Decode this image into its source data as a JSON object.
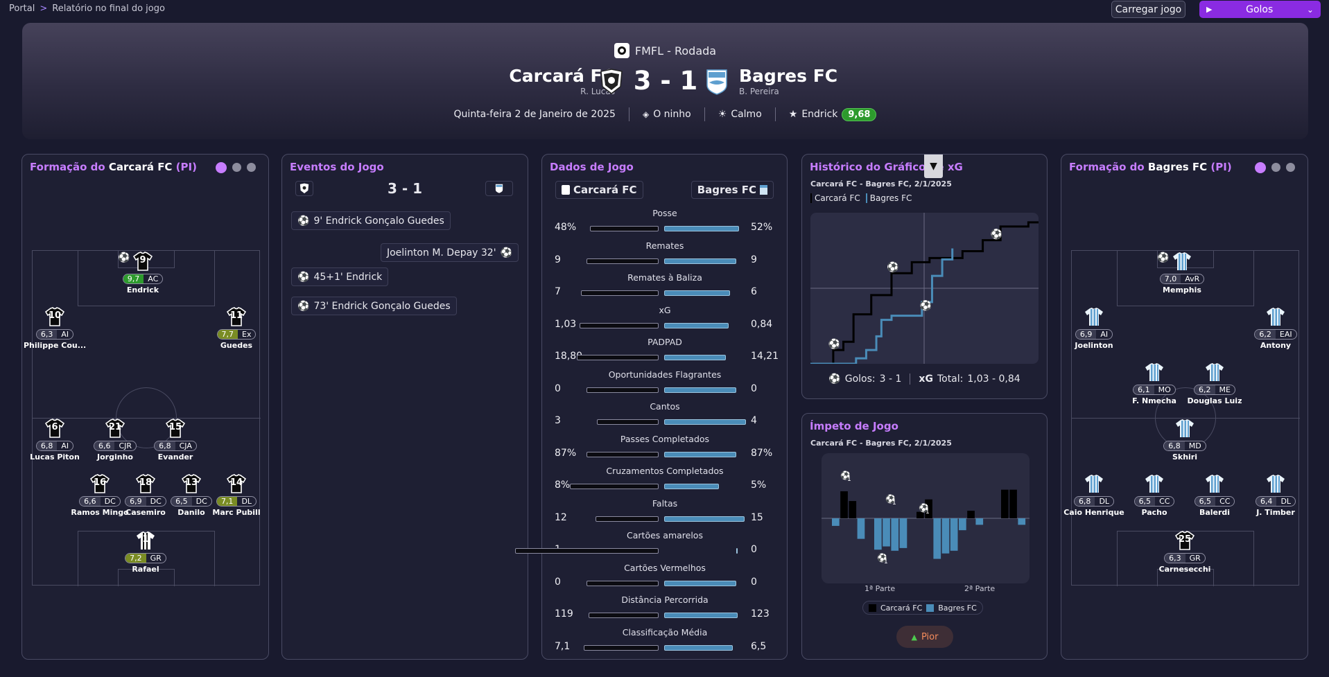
{
  "breadcrumb": {
    "root": "Portal",
    "current": "Relatório no final do jogo"
  },
  "toolbar": {
    "load": "Carregar jogo",
    "goals": "Golos"
  },
  "header": {
    "competition": "FMFL - Rodada",
    "home": "Carcará FC",
    "home_coach": "R. Lucas",
    "away": "Bagres FC",
    "away_coach": "B. Pereira",
    "score": "3 - 1",
    "date": "Quinta-feira 2 de Janeiro de 2025",
    "stadium": "O ninho",
    "weather": "Calmo",
    "motm": "Endrick",
    "motm_rating": "9,68"
  },
  "home_formation": {
    "prefix": "Formação do ",
    "team": "Carcará FC",
    "suffix": " (PI)",
    "players": [
      {
        "num": "9",
        "rating": "9,7",
        "pos": "AC",
        "name": "Endrick",
        "rc": "g",
        "goal": true
      },
      {
        "num": "10",
        "rating": "6,3",
        "pos": "AI",
        "name": "Philippe Cou...",
        "rc": ""
      },
      {
        "num": "11",
        "rating": "7,7",
        "pos": "Ex",
        "name": "Guedes",
        "rc": "y"
      },
      {
        "num": "6",
        "rating": "6,8",
        "pos": "AI",
        "name": "Lucas Piton",
        "rc": ""
      },
      {
        "num": "21",
        "rating": "6,6",
        "pos": "CJR",
        "name": "Jorginho",
        "rc": ""
      },
      {
        "num": "15",
        "rating": "6,8",
        "pos": "CJA",
        "name": "Evander",
        "rc": ""
      },
      {
        "num": "16",
        "rating": "6,6",
        "pos": "DC",
        "name": "Ramos Mingo",
        "rc": ""
      },
      {
        "num": "18",
        "rating": "6,9",
        "pos": "DC",
        "name": "Casemiro",
        "rc": ""
      },
      {
        "num": "13",
        "rating": "6,5",
        "pos": "DC",
        "name": "Danilo",
        "rc": ""
      },
      {
        "num": "14",
        "rating": "7,1",
        "pos": "DL",
        "name": "Marc Pubill",
        "rc": "y"
      },
      {
        "num": "1",
        "rating": "7,2",
        "pos": "GR",
        "name": "Rafael",
        "rc": "y"
      }
    ]
  },
  "events": {
    "title": "Eventos do Jogo",
    "score": "3 - 1",
    "items": [
      {
        "text": "9'  Endrick  Gonçalo Guedes",
        "side": "home"
      },
      {
        "text": "Joelinton  M. Depay  32'",
        "side": "away"
      },
      {
        "text": "45+1'  Endrick",
        "side": "home"
      },
      {
        "text": "73'  Endrick  Gonçalo Guedes",
        "side": "home"
      }
    ]
  },
  "stats": {
    "title": "Dados de Jogo",
    "home": "Carcará FC",
    "away": "Bagres FC",
    "rows": [
      {
        "label": "Posse",
        "l": "48%",
        "r": "52%",
        "lv": 48,
        "rv": 52
      },
      {
        "label": "Remates",
        "l": "9",
        "r": "9",
        "lv": 50,
        "rv": 50
      },
      {
        "label": "Remates à Baliza",
        "l": "7",
        "r": "6",
        "lv": 54,
        "rv": 46
      },
      {
        "label": "xG",
        "l": "1,03",
        "r": "0,84",
        "lv": 55,
        "rv": 45
      },
      {
        "label": "PADPAD",
        "l": "18,80",
        "r": "14,21",
        "lv": 57,
        "rv": 43
      },
      {
        "label": "Oportunidades Flagrantes",
        "l": "0",
        "r": "0",
        "lv": 50,
        "rv": 50
      },
      {
        "label": "Cantos",
        "l": "3",
        "r": "4",
        "lv": 43,
        "rv": 57
      },
      {
        "label": "Passes Completados",
        "l": "87%",
        "r": "87%",
        "lv": 50,
        "rv": 50
      },
      {
        "label": "Cruzamentos Completados",
        "l": "8%",
        "r": "5%",
        "lv": 62,
        "rv": 38
      },
      {
        "label": "Faltas",
        "l": "12",
        "r": "15",
        "lv": 44,
        "rv": 56
      },
      {
        "label": "Cartões amarelos",
        "l": "1",
        "r": "0",
        "lv": 100,
        "rv": 0
      },
      {
        "label": "Cartões Vermelhos",
        "l": "0",
        "r": "0",
        "lv": 50,
        "rv": 50
      },
      {
        "label": "Distância Percorrida",
        "l": "119",
        "r": "123",
        "lv": 49,
        "rv": 51
      },
      {
        "label": "Classificação Média",
        "l": "7,1",
        "r": "6,5",
        "lv": 52,
        "rv": 48
      }
    ]
  },
  "xg": {
    "title": "Histórico do Gráfico de xG",
    "subtitle": "Carcará FC - Bagres FC, 2/1/2025",
    "legend_home": "Carcará FC",
    "legend_away": "Bagres FC",
    "goals_label": "Golos:",
    "goals": "3 - 1",
    "xg_label": "xG",
    "total_label": "Total:",
    "total": "1,03  -  0,84"
  },
  "momentum": {
    "title": "Ímpeto de Jogo",
    "subtitle": "Carcará FC - Bagres FC, 2/1/2025",
    "first_half": "1ª Parte",
    "second_half": "2ª Parte",
    "legend_home": "Carcará FC",
    "legend_away": "Bagres FC",
    "button": "Pior",
    "goal_count": "1"
  },
  "away_formation": {
    "prefix": "Formação do ",
    "team": "Bagres FC",
    "suffix": " (PI)",
    "players": [
      {
        "num": "",
        "rating": "7,0",
        "pos": "AvR",
        "name": "Memphis",
        "rc": "",
        "goal": true
      },
      {
        "num": "",
        "rating": "6,9",
        "pos": "AI",
        "name": "Joelinton",
        "rc": ""
      },
      {
        "num": "",
        "rating": "6,2",
        "pos": "EAI",
        "name": "Antony",
        "rc": ""
      },
      {
        "num": "",
        "rating": "6,1",
        "pos": "MO",
        "name": "F. Nmecha",
        "rc": ""
      },
      {
        "num": "",
        "rating": "6,2",
        "pos": "ME",
        "name": "Douglas Luiz",
        "rc": ""
      },
      {
        "num": "",
        "rating": "6,8",
        "pos": "MD",
        "name": "Skhiri",
        "rc": ""
      },
      {
        "num": "",
        "rating": "6,8",
        "pos": "DL",
        "name": "Caio Henrique",
        "rc": ""
      },
      {
        "num": "",
        "rating": "6,5",
        "pos": "CC",
        "name": "Pacho",
        "rc": ""
      },
      {
        "num": "",
        "rating": "6,5",
        "pos": "CC",
        "name": "Balerdi",
        "rc": ""
      },
      {
        "num": "",
        "rating": "6,4",
        "pos": "DL",
        "name": "J. Timber",
        "rc": ""
      },
      {
        "num": "25",
        "rating": "6,3",
        "pos": "GR",
        "name": "Carnesecchi",
        "rc": ""
      }
    ]
  },
  "colors": {
    "accent": "#8a2be2",
    "title": "#c77dff",
    "home_series": "#000000",
    "away_series": "#4a8cb8",
    "good": "#2d9a2d"
  }
}
